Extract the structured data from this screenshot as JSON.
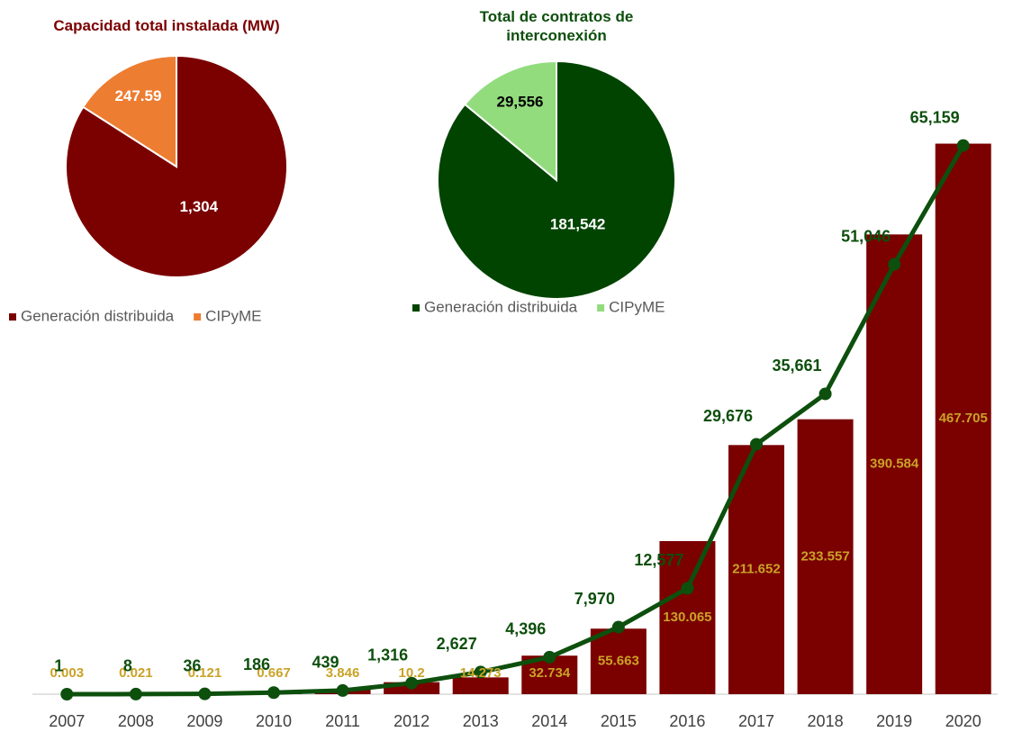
{
  "chart_data": [
    {
      "type": "pie",
      "title": "Capacidad total instalada (MW)",
      "categories": [
        "Generación distribuida",
        "CIPyME"
      ],
      "values": [
        1304,
        247.59
      ],
      "value_labels": [
        "1,304",
        "247.59"
      ],
      "colors": [
        "#7b0000",
        "#ed7d31"
      ]
    },
    {
      "type": "pie",
      "title": "Total de contratos de interconexión",
      "categories": [
        "Generación distribuida",
        "CIPyME"
      ],
      "values": [
        181542,
        29556
      ],
      "value_labels": [
        "181,542",
        "29,556"
      ],
      "colors": [
        "#004400",
        "#92dc7e"
      ]
    },
    {
      "type": "bar",
      "categories": [
        "2007",
        "2008",
        "2009",
        "2010",
        "2011",
        "2012",
        "2013",
        "2014",
        "2015",
        "2016",
        "2017",
        "2018",
        "2019",
        "2020"
      ],
      "ylim": [
        0,
        475
      ],
      "y2lim": [
        0,
        66400
      ],
      "series": [
        {
          "type": "bar",
          "color": "#7b0000",
          "values": [
            0.003,
            0.021,
            0.121,
            0.667,
            3.846,
            10.2,
            14.273,
            32.734,
            55.663,
            130.065,
            211.652,
            233.557,
            390.584,
            467.705
          ]
        },
        {
          "type": "line",
          "axis": "y2",
          "color": "#0d4f0d",
          "values": [
            1,
            8,
            36,
            186,
            439,
            1316,
            2627,
            4396,
            7970,
            12577,
            29676,
            35661,
            51046,
            65159
          ],
          "value_labels": [
            "1",
            "8",
            "36",
            "186",
            "439",
            "1,316",
            "2,627",
            "4,396",
            "7,970",
            "12,577",
            "29,676",
            "35,661",
            "51,046",
            "65,159"
          ]
        }
      ]
    }
  ]
}
